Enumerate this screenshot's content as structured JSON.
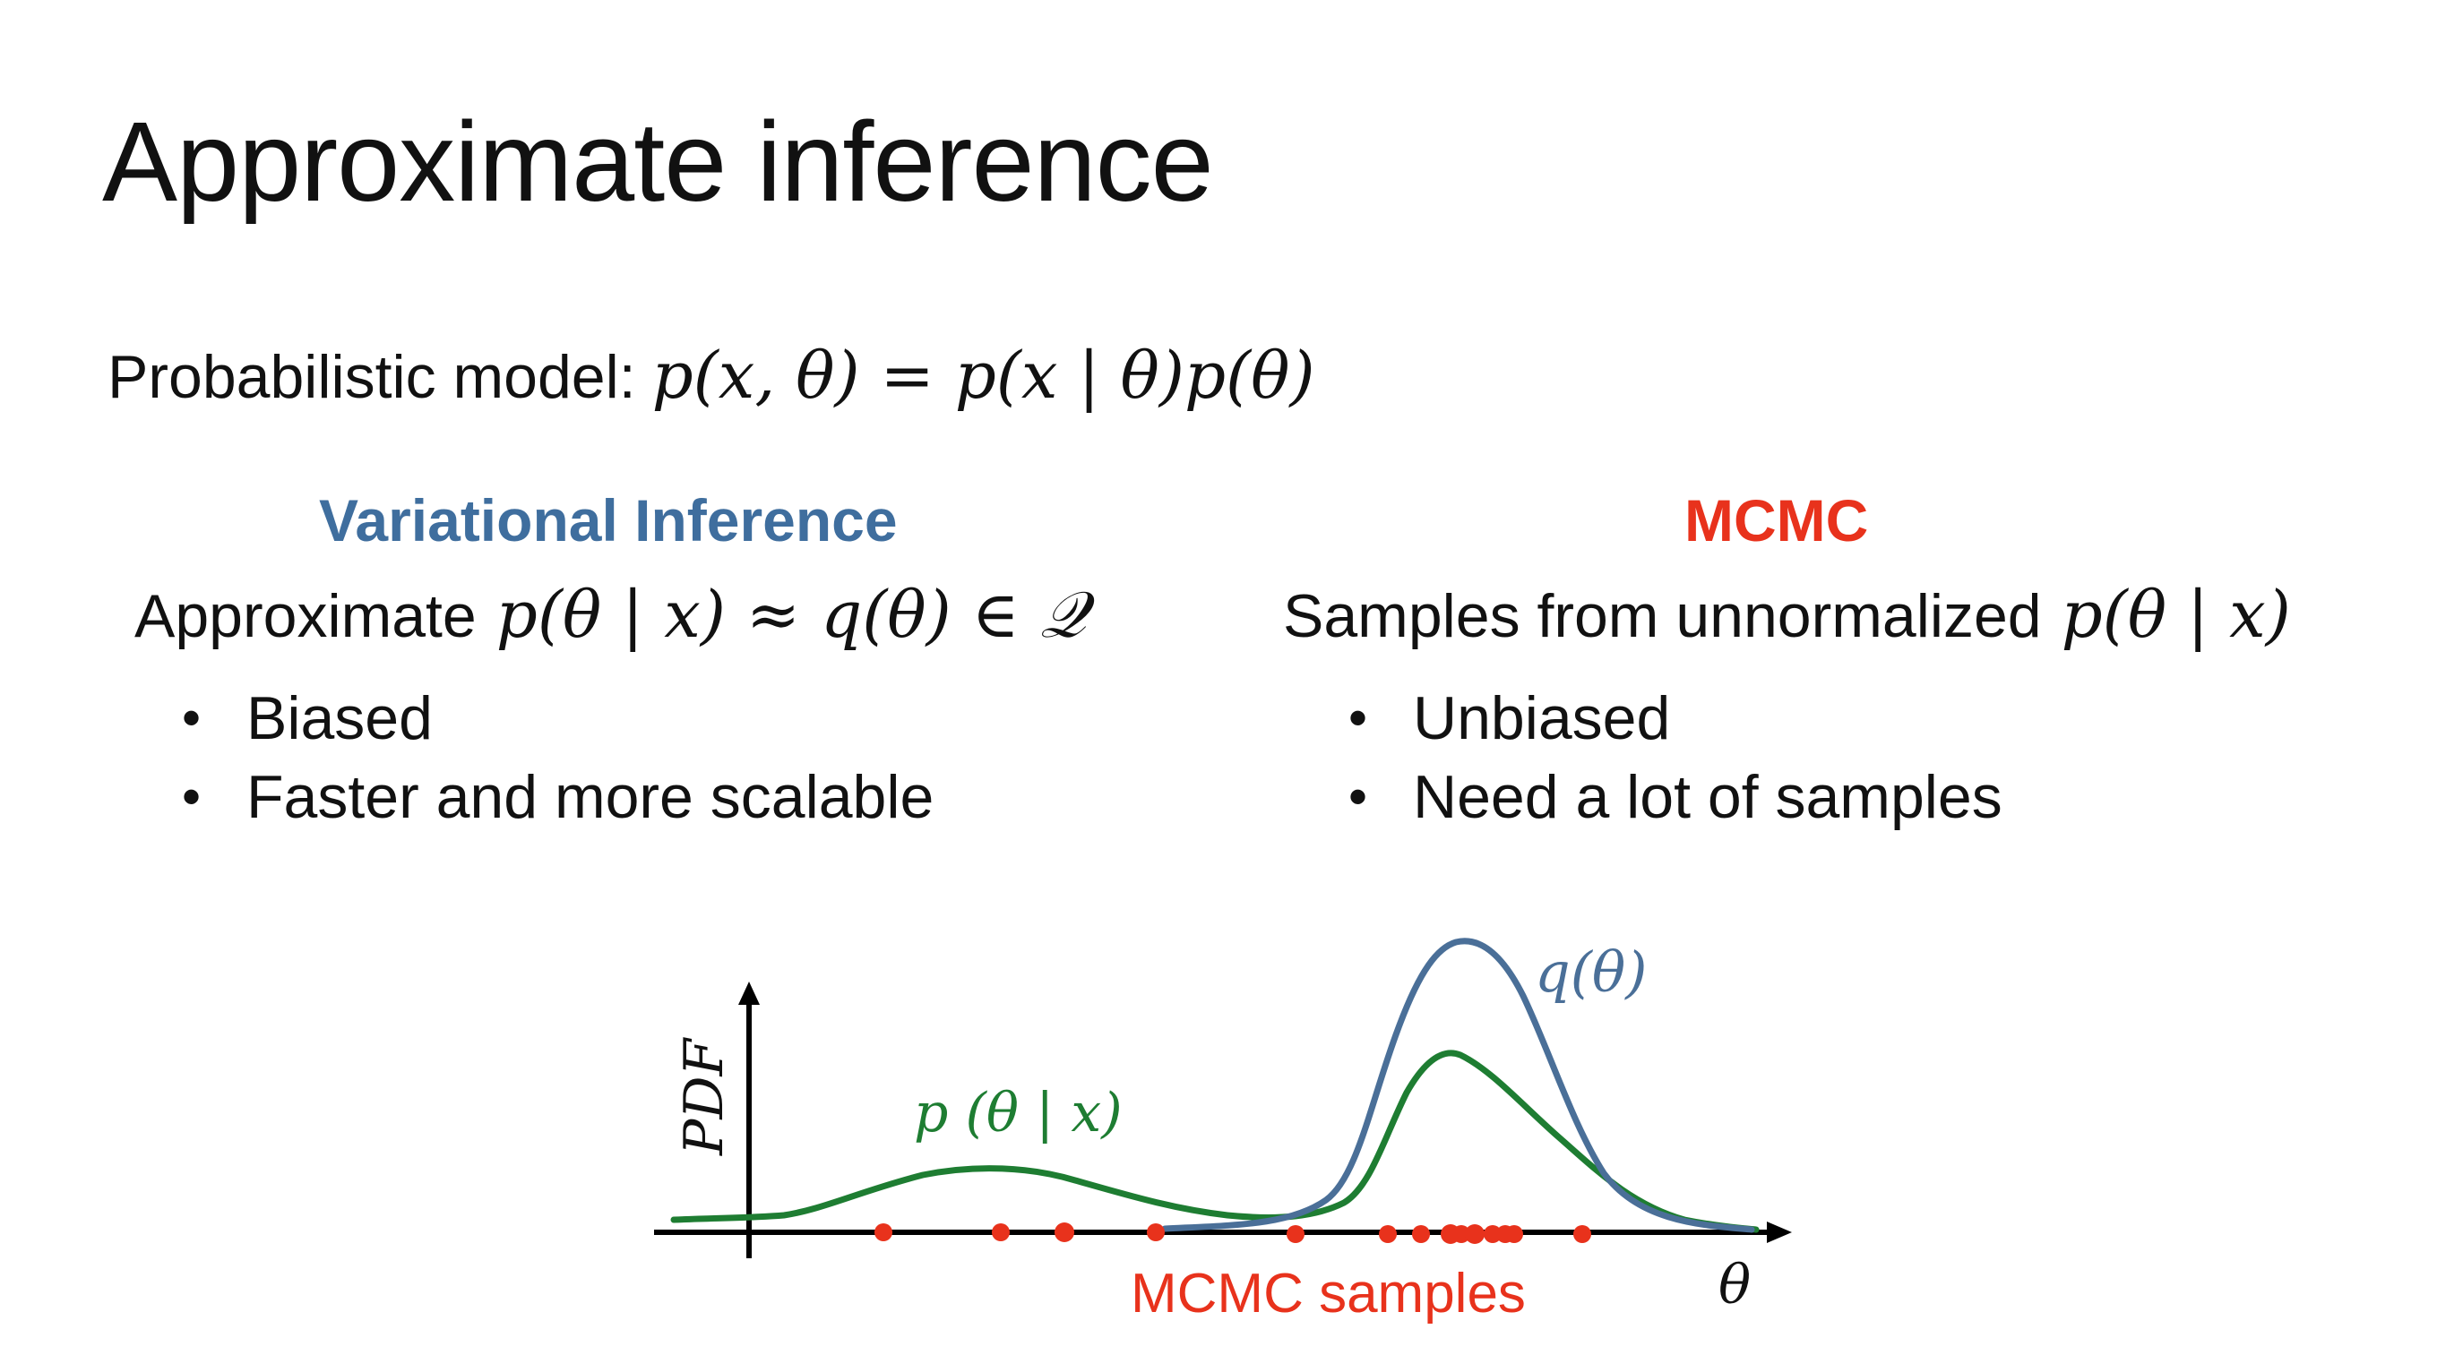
{
  "slide": {
    "title": "Approximate inference",
    "model_label": "Probabilistic model:",
    "model_formula": "p(x, θ) = p(x | θ)p(θ)"
  },
  "left": {
    "heading": "Variational Inference",
    "desc_text": "Approximate",
    "desc_formula": "p(θ | x) ≈ q(θ) ∈ 𝒬",
    "bullets": [
      "Biased",
      "Faster and more scalable"
    ]
  },
  "right": {
    "heading": "MCMC",
    "desc_text": "Samples from unnormalized",
    "desc_formula": "p(θ | x)",
    "bullets": [
      "Unbiased",
      "Need a lot of samples"
    ]
  },
  "figure": {
    "y_axis_label": "PDF",
    "x_axis_label": "θ",
    "posterior_label": "p (θ | x)",
    "q_label": "q(θ)",
    "samples_label": "MCMC samples",
    "colors": {
      "posterior": "#1e7d32",
      "q": "#4a6f98",
      "samples": "#e8321c",
      "axis": "#000000",
      "vi_heading": "#3f6e9e",
      "mcmc_heading": "#e8321c"
    }
  }
}
